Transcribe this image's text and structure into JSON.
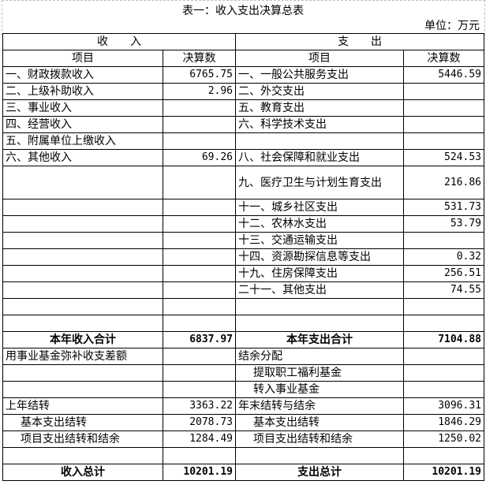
{
  "title": "表一：收入支出决算总表",
  "unit": "单位：万元",
  "header": {
    "income": "收　　入",
    "expense": "支　　出",
    "item": "项目",
    "amount": "决算数"
  },
  "rows": [
    {
      "li": "一、财政拨款收入",
      "lv": "6765.75",
      "ri": "一、一般公共服务支出",
      "rv": "5446.59"
    },
    {
      "li": "二、上级补助收入",
      "lv": "2.96",
      "ri": "二、外交支出",
      "rv": ""
    },
    {
      "li": "三、事业收入",
      "lv": "",
      "ri": "五、教育支出",
      "rv": ""
    },
    {
      "li": "四、经营收入",
      "lv": "",
      "ri": "六、科学技术支出",
      "rv": ""
    },
    {
      "li": "五、附属单位上缴收入",
      "lv": "",
      "ri": "",
      "rv": ""
    },
    {
      "li": "六、其他收入",
      "lv": "69.26",
      "ri": "八、社会保障和就业支出",
      "rv": "524.53"
    },
    {
      "li": "",
      "lv": "",
      "ri": "九、医疗卫生与计划生育支出",
      "rv": "216.86",
      "tall": true
    },
    {
      "li": "",
      "lv": "",
      "ri": "十一、城乡社区支出",
      "rv": "531.73"
    },
    {
      "li": "",
      "lv": "",
      "ri": "十二、农林水支出",
      "rv": "53.79"
    },
    {
      "li": "",
      "lv": "",
      "ri": "十三、交通运输支出",
      "rv": ""
    },
    {
      "li": "",
      "lv": "",
      "ri": "十四、资源勘探信息等支出",
      "rv": "0.32"
    },
    {
      "li": "",
      "lv": "",
      "ri": "十九、住房保障支出",
      "rv": "256.51"
    },
    {
      "li": "",
      "lv": "",
      "ri": "二十一、其他支出",
      "rv": "74.55"
    },
    {
      "li": "",
      "lv": "",
      "ri": "",
      "rv": ""
    },
    {
      "li": "",
      "lv": "",
      "ri": "",
      "rv": ""
    },
    {
      "li": "本年收入合计",
      "lv": "6837.97",
      "ri": "本年支出合计",
      "rv": "7104.88",
      "bold": true
    },
    {
      "li": "用事业基金弥补收支差额",
      "lv": "",
      "ri": "结余分配",
      "rv": ""
    },
    {
      "li": "",
      "lv": "",
      "ri": "提取职工福利基金",
      "rv": "",
      "rind": true
    },
    {
      "li": "",
      "lv": "",
      "ri": "转入事业基金",
      "rv": "",
      "rind": true
    },
    {
      "li": "上年结转",
      "lv": "3363.22",
      "ri": "年末结转与结余",
      "rv": "3096.31"
    },
    {
      "li": "基本支出结转",
      "lv": "2078.73",
      "ri": "基本支出结转",
      "rv": "1846.29",
      "lind": true,
      "rind": true
    },
    {
      "li": "项目支出结转和结余",
      "lv": "1284.49",
      "ri": "项目支出结转和结余",
      "rv": "1250.02",
      "lind": true,
      "rind": true
    },
    {
      "li": "",
      "lv": "",
      "ri": "",
      "rv": ""
    },
    {
      "li": "收入总计",
      "lv": "10201.19",
      "ri": "支出总计",
      "rv": "10201.19",
      "bold": true
    }
  ]
}
